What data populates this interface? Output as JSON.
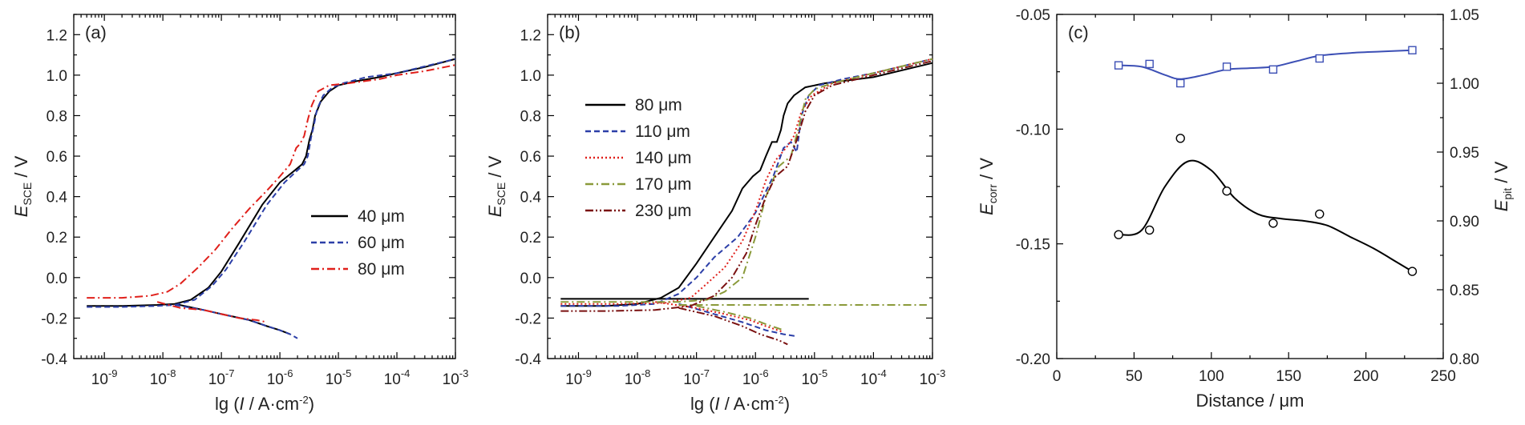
{
  "chart_data": [
    {
      "type": "line",
      "panel": "(a)",
      "x_scale": "log",
      "xlim": [
        3e-10,
        0.001
      ],
      "ylim": [
        -0.4,
        1.3
      ],
      "xlabel": {
        "pre": "lg (",
        "italic": "I",
        "post": " / A·cm",
        "sup": "-2",
        "end": ")"
      },
      "ylabel": {
        "italic": "E",
        "sub": "SCE",
        "post": " / V"
      },
      "x_ticks": [
        {
          "v": 1e-09,
          "base": "10",
          "exp": "-9"
        },
        {
          "v": 1e-08,
          "base": "10",
          "exp": "-8"
        },
        {
          "v": 1e-07,
          "base": "10",
          "exp": "-7"
        },
        {
          "v": 1e-06,
          "base": "10",
          "exp": "-6"
        },
        {
          "v": 1e-05,
          "base": "10",
          "exp": "-5"
        },
        {
          "v": 0.0001,
          "base": "10",
          "exp": "-4"
        },
        {
          "v": 0.001,
          "base": "10",
          "exp": "-3"
        }
      ],
      "y_ticks": [
        {
          "v": -0.4,
          "label": "-0.4"
        },
        {
          "v": -0.2,
          "label": "-0.2"
        },
        {
          "v": 0.0,
          "label": "0.0"
        },
        {
          "v": 0.2,
          "label": "0.2"
        },
        {
          "v": 0.4,
          "label": "0.4"
        },
        {
          "v": 0.6,
          "label": "0.6"
        },
        {
          "v": 0.8,
          "label": "0.8"
        },
        {
          "v": 1.0,
          "label": "1.0"
        },
        {
          "v": 1.2,
          "label": "1.2"
        }
      ],
      "legend": {
        "position": "center-right"
      },
      "series": [
        {
          "name": "40 μm",
          "color": "#000000",
          "dash": "solid",
          "branches": [
            {
              "x": [
                5e-10,
                2e-09,
                8e-09,
                1.6e-08,
                3e-08,
                6e-08,
                1e-07,
                2e-07,
                5e-07,
                1e-06,
                1.8e-06,
                2.4e-06,
                2.8e-06,
                3.2e-06,
                3.6e-06,
                4e-06,
                5e-06,
                7e-06,
                1e-05,
                2e-05,
                5e-05,
                0.0001,
                0.0003,
                0.001
              ],
              "y": [
                -0.14,
                -0.14,
                -0.135,
                -0.13,
                -0.11,
                -0.05,
                0.03,
                0.17,
                0.36,
                0.47,
                0.53,
                0.56,
                0.6,
                0.68,
                0.73,
                0.8,
                0.87,
                0.92,
                0.95,
                0.97,
                0.99,
                1.01,
                1.04,
                1.08
              ]
            },
            {
              "x": [
                1.6e-08,
                5e-08,
                1e-07,
                3e-07,
                6e-07,
                1e-06,
                1.5e-06
              ],
              "y": [
                -0.13,
                -0.16,
                -0.18,
                -0.21,
                -0.24,
                -0.26,
                -0.28
              ]
            }
          ]
        },
        {
          "name": "60 μm",
          "color": "#2c3fa8",
          "dash": "7,4",
          "branches": [
            {
              "x": [
                5e-10,
                2e-09,
                8e-09,
                1.6e-08,
                3.5e-08,
                7e-08,
                1.2e-07,
                2.5e-07,
                6e-07,
                1.2e-06,
                2e-06,
                2.6e-06,
                3e-06,
                3.4e-06,
                3.8e-06,
                4.3e-06,
                5.5e-06,
                8e-06,
                1.2e-05,
                3e-05,
                0.0001,
                0.001
              ],
              "y": [
                -0.145,
                -0.145,
                -0.14,
                -0.135,
                -0.11,
                -0.04,
                0.04,
                0.18,
                0.36,
                0.47,
                0.53,
                0.56,
                0.6,
                0.69,
                0.75,
                0.83,
                0.9,
                0.94,
                0.96,
                0.99,
                1.01,
                1.08
              ]
            },
            {
              "x": [
                1.6e-08,
                5e-08,
                1e-07,
                3e-07,
                6e-07,
                1e-06,
                1.5e-06,
                2e-06
              ],
              "y": [
                -0.135,
                -0.16,
                -0.18,
                -0.21,
                -0.24,
                -0.26,
                -0.28,
                -0.3
              ]
            }
          ]
        },
        {
          "name": "80 μm",
          "color": "#e0201b",
          "dash": "10,4,2,4",
          "branches": [
            {
              "x": [
                5e-10,
                2e-09,
                6e-09,
                1.2e-08,
                2e-08,
                4e-08,
                8e-08,
                1.5e-07,
                3e-07,
                6e-07,
                1e-06,
                1.5e-06,
                1.9e-06,
                2.2e-06,
                2.6e-06,
                3e-06,
                3.5e-06,
                4.5e-06,
                7e-06,
                1.5e-05,
                5e-05,
                0.0001,
                0.0003,
                0.001
              ],
              "y": [
                -0.1,
                -0.1,
                -0.09,
                -0.07,
                -0.03,
                0.05,
                0.14,
                0.24,
                0.34,
                0.43,
                0.5,
                0.56,
                0.64,
                0.66,
                0.7,
                0.78,
                0.85,
                0.92,
                0.95,
                0.96,
                0.98,
                1.0,
                1.02,
                1.05
              ]
            },
            {
              "x": [
                8e-09,
                2e-08,
                5e-08,
                1e-07,
                2e-07,
                4e-07,
                6e-07
              ],
              "y": [
                -0.12,
                -0.15,
                -0.16,
                -0.18,
                -0.2,
                -0.21,
                -0.22
              ]
            }
          ]
        }
      ]
    },
    {
      "type": "line",
      "panel": "(b)",
      "x_scale": "log",
      "xlim": [
        3e-10,
        0.001
      ],
      "ylim": [
        -0.4,
        1.3
      ],
      "xlabel": {
        "pre": "lg (",
        "italic": "I",
        "post": " / A·cm",
        "sup": "-2",
        "end": ")"
      },
      "ylabel": {
        "italic": "E",
        "sub": "SCE",
        "post": " / V"
      },
      "x_ticks": [
        {
          "v": 1e-09,
          "base": "10",
          "exp": "-9"
        },
        {
          "v": 1e-08,
          "base": "10",
          "exp": "-8"
        },
        {
          "v": 1e-07,
          "base": "10",
          "exp": "-7"
        },
        {
          "v": 1e-06,
          "base": "10",
          "exp": "-6"
        },
        {
          "v": 1e-05,
          "base": "10",
          "exp": "-5"
        },
        {
          "v": 0.0001,
          "base": "10",
          "exp": "-4"
        },
        {
          "v": 0.001,
          "base": "10",
          "exp": "-3"
        }
      ],
      "y_ticks": [
        {
          "v": -0.4,
          "label": "-0.4"
        },
        {
          "v": -0.2,
          "label": "-0.2"
        },
        {
          "v": 0.0,
          "label": "0.0"
        },
        {
          "v": 0.2,
          "label": "0.2"
        },
        {
          "v": 0.4,
          "label": "0.4"
        },
        {
          "v": 0.6,
          "label": "0.6"
        },
        {
          "v": 0.8,
          "label": "0.8"
        },
        {
          "v": 1.0,
          "label": "1.0"
        },
        {
          "v": 1.2,
          "label": "1.2"
        }
      ],
      "legend": {
        "position": "left"
      },
      "series": [
        {
          "name": "80 μm",
          "color": "#000000",
          "dash": "solid",
          "branches": [
            {
              "x": [
                5e-10,
                3e-09,
                1e-08,
                2.5e-08,
                5e-08,
                1e-07,
                2e-07,
                4e-07,
                6e-07,
                9e-07,
                1.2e-06,
                1.5e-06,
                1.9e-06,
                2.3e-06,
                2.7e-06,
                3e-06,
                3.5e-06,
                4.5e-06,
                7e-06,
                1.5e-05,
                0.0001,
                0.001
              ],
              "y": [
                -0.14,
                -0.14,
                -0.13,
                -0.1,
                -0.05,
                0.07,
                0.2,
                0.33,
                0.44,
                0.5,
                0.53,
                0.6,
                0.67,
                0.67,
                0.73,
                0.8,
                0.86,
                0.9,
                0.94,
                0.96,
                0.99,
                1.06
              ]
            },
            {
              "x": [
                5e-10,
                1e-08,
                1e-07,
                1e-06,
                8e-06
              ],
              "y": [
                -0.105,
                -0.105,
                -0.105,
                -0.105,
                -0.105
              ]
            }
          ]
        },
        {
          "name": "110 μm",
          "color": "#2c3fa8",
          "dash": "7,4",
          "branches": [
            {
              "x": [
                5e-10,
                5e-09,
                2e-08,
                5e-08,
                1e-07,
                2e-07,
                5e-07,
                1e-06,
                2e-06,
                3e-06,
                4e-06,
                5e-06,
                6e-06,
                8e-06,
                1.2e-05,
                3e-05,
                0.0001,
                0.001
              ],
              "y": [
                -0.14,
                -0.14,
                -0.13,
                -0.08,
                0.0,
                0.1,
                0.2,
                0.32,
                0.5,
                0.64,
                0.67,
                0.62,
                0.8,
                0.9,
                0.95,
                0.98,
                1.01,
                1.08
              ]
            },
            {
              "x": [
                5e-08,
                2e-07,
                6e-07,
                1.5e-06,
                3e-06,
                5e-06
              ],
              "y": [
                -0.13,
                -0.18,
                -0.22,
                -0.26,
                -0.28,
                -0.29
              ]
            }
          ]
        },
        {
          "name": "140 μm",
          "color": "#e0201b",
          "dash": "2,3",
          "branches": [
            {
              "x": [
                5e-10,
                5e-09,
                3e-08,
                8e-08,
                1.5e-07,
                3e-07,
                6e-07,
                1e-06,
                1.5e-06,
                2.2e-06,
                3.5e-06,
                4.5e-06,
                6e-06,
                9e-06,
                2e-05,
                0.0001,
                0.001
              ],
              "y": [
                -0.13,
                -0.13,
                -0.125,
                -0.1,
                -0.03,
                0.05,
                0.18,
                0.33,
                0.48,
                0.58,
                0.65,
                0.7,
                0.82,
                0.9,
                0.96,
                1.01,
                1.08
              ]
            },
            {
              "x": [
                2e-08,
                1e-07,
                3e-07,
                8e-07,
                1.5e-06,
                3e-06
              ],
              "y": [
                -0.12,
                -0.15,
                -0.18,
                -0.21,
                -0.24,
                -0.27
              ]
            }
          ]
        },
        {
          "name": "170 μm",
          "color": "#8a9a3a",
          "dash": "10,4,2,4",
          "branches": [
            {
              "x": [
                5e-10,
                5e-09,
                5e-08,
                1.5e-07,
                3e-07,
                6e-07,
                1e-06,
                1.5e-06,
                2.5e-06,
                4e-06,
                5.5e-06,
                7e-06,
                1e-05,
                2e-05,
                0.0001,
                0.001
              ],
              "y": [
                -0.12,
                -0.12,
                -0.12,
                -0.11,
                -0.07,
                0.0,
                0.2,
                0.4,
                0.55,
                0.6,
                0.75,
                0.88,
                0.93,
                0.96,
                1.01,
                1.08
              ]
            },
            {
              "x": [
                5e-08,
                1e-06,
                1e-05,
                0.0001,
                0.0008
              ],
              "y": [
                -0.135,
                -0.135,
                -0.135,
                -0.135,
                -0.135
              ]
            },
            {
              "x": [
                1e-07,
                3e-07,
                8e-07,
                1.5e-06,
                3e-06
              ],
              "y": [
                -0.14,
                -0.17,
                -0.2,
                -0.23,
                -0.26
              ]
            }
          ]
        },
        {
          "name": "230 μm",
          "color": "#7a1010",
          "dash": "10,3,2,3,2,3",
          "branches": [
            {
              "x": [
                5e-10,
                3e-09,
                2e-08,
                8e-08,
                2e-07,
                4e-07,
                7e-07,
                1e-06,
                1.5e-06,
                2.2e-06,
                3.5e-06,
                5e-06,
                7e-06,
                1e-05,
                2e-05,
                0.0001,
                0.001
              ],
              "y": [
                -0.165,
                -0.165,
                -0.16,
                -0.14,
                -0.09,
                0.0,
                0.12,
                0.26,
                0.4,
                0.5,
                0.55,
                0.68,
                0.82,
                0.9,
                0.95,
                1.0,
                1.07
              ]
            },
            {
              "x": [
                5e-08,
                2e-07,
                6e-07,
                1.2e-06,
                2.5e-06,
                3.5e-06
              ],
              "y": [
                -0.15,
                -0.19,
                -0.24,
                -0.28,
                -0.31,
                -0.33
              ]
            }
          ]
        }
      ]
    },
    {
      "type": "scatter",
      "panel": "(c)",
      "xlim": [
        0,
        250
      ],
      "ylim_left": [
        -0.2,
        -0.05
      ],
      "ylim_right": [
        0.8,
        1.05
      ],
      "xlabel": "Distance / μm",
      "ylabel_left": {
        "italic": "E",
        "sub": "corr",
        "post": " / V"
      },
      "ylabel_right": {
        "italic": "E",
        "sub": "pit",
        "post": " / V"
      },
      "x_ticks": [
        {
          "v": 0,
          "label": "0"
        },
        {
          "v": 50,
          "label": "50"
        },
        {
          "v": 100,
          "label": "100"
        },
        {
          "v": 150,
          "label": "150"
        },
        {
          "v": 200,
          "label": "200"
        },
        {
          "v": 250,
          "label": "250"
        }
      ],
      "y_ticks_left": [
        {
          "v": -0.2,
          "label": "-0.20"
        },
        {
          "v": -0.15,
          "label": "-0.15"
        },
        {
          "v": -0.1,
          "label": "-0.10"
        },
        {
          "v": -0.05,
          "label": "-0.05"
        }
      ],
      "y_ticks_right": [
        {
          "v": 0.8,
          "label": "0.80"
        },
        {
          "v": 0.85,
          "label": "0.85"
        },
        {
          "v": 0.9,
          "label": "0.90"
        },
        {
          "v": 0.95,
          "label": "0.95"
        },
        {
          "v": 1.0,
          "label": "1.00"
        },
        {
          "v": 1.05,
          "label": "1.05"
        }
      ],
      "series": [
        {
          "axis": "left",
          "marker": "circle",
          "color": "#000000",
          "x": [
            40,
            60,
            80,
            110,
            140,
            170,
            230
          ],
          "y": [
            -0.146,
            -0.144,
            -0.104,
            -0.127,
            -0.141,
            -0.137,
            -0.162
          ],
          "fit_x": [
            40,
            55,
            70,
            85,
            100,
            115,
            130,
            145,
            160,
            175,
            190,
            205,
            220,
            230
          ],
          "fit_y": [
            -0.146,
            -0.144,
            -0.125,
            -0.114,
            -0.118,
            -0.13,
            -0.137,
            -0.139,
            -0.14,
            -0.142,
            -0.147,
            -0.152,
            -0.158,
            -0.162
          ]
        },
        {
          "axis": "right",
          "marker": "square",
          "color": "#3c4fb5",
          "x": [
            40,
            60,
            80,
            110,
            140,
            170,
            230
          ],
          "y": [
            1.013,
            1.014,
            1.0,
            1.012,
            1.01,
            1.018,
            1.024
          ],
          "fit_x": [
            40,
            55,
            70,
            80,
            95,
            110,
            125,
            140,
            155,
            170,
            190,
            210,
            230
          ],
          "fit_y": [
            1.013,
            1.012,
            1.006,
            1.003,
            1.006,
            1.01,
            1.011,
            1.012,
            1.016,
            1.02,
            1.022,
            1.023,
            1.024
          ]
        }
      ]
    }
  ]
}
